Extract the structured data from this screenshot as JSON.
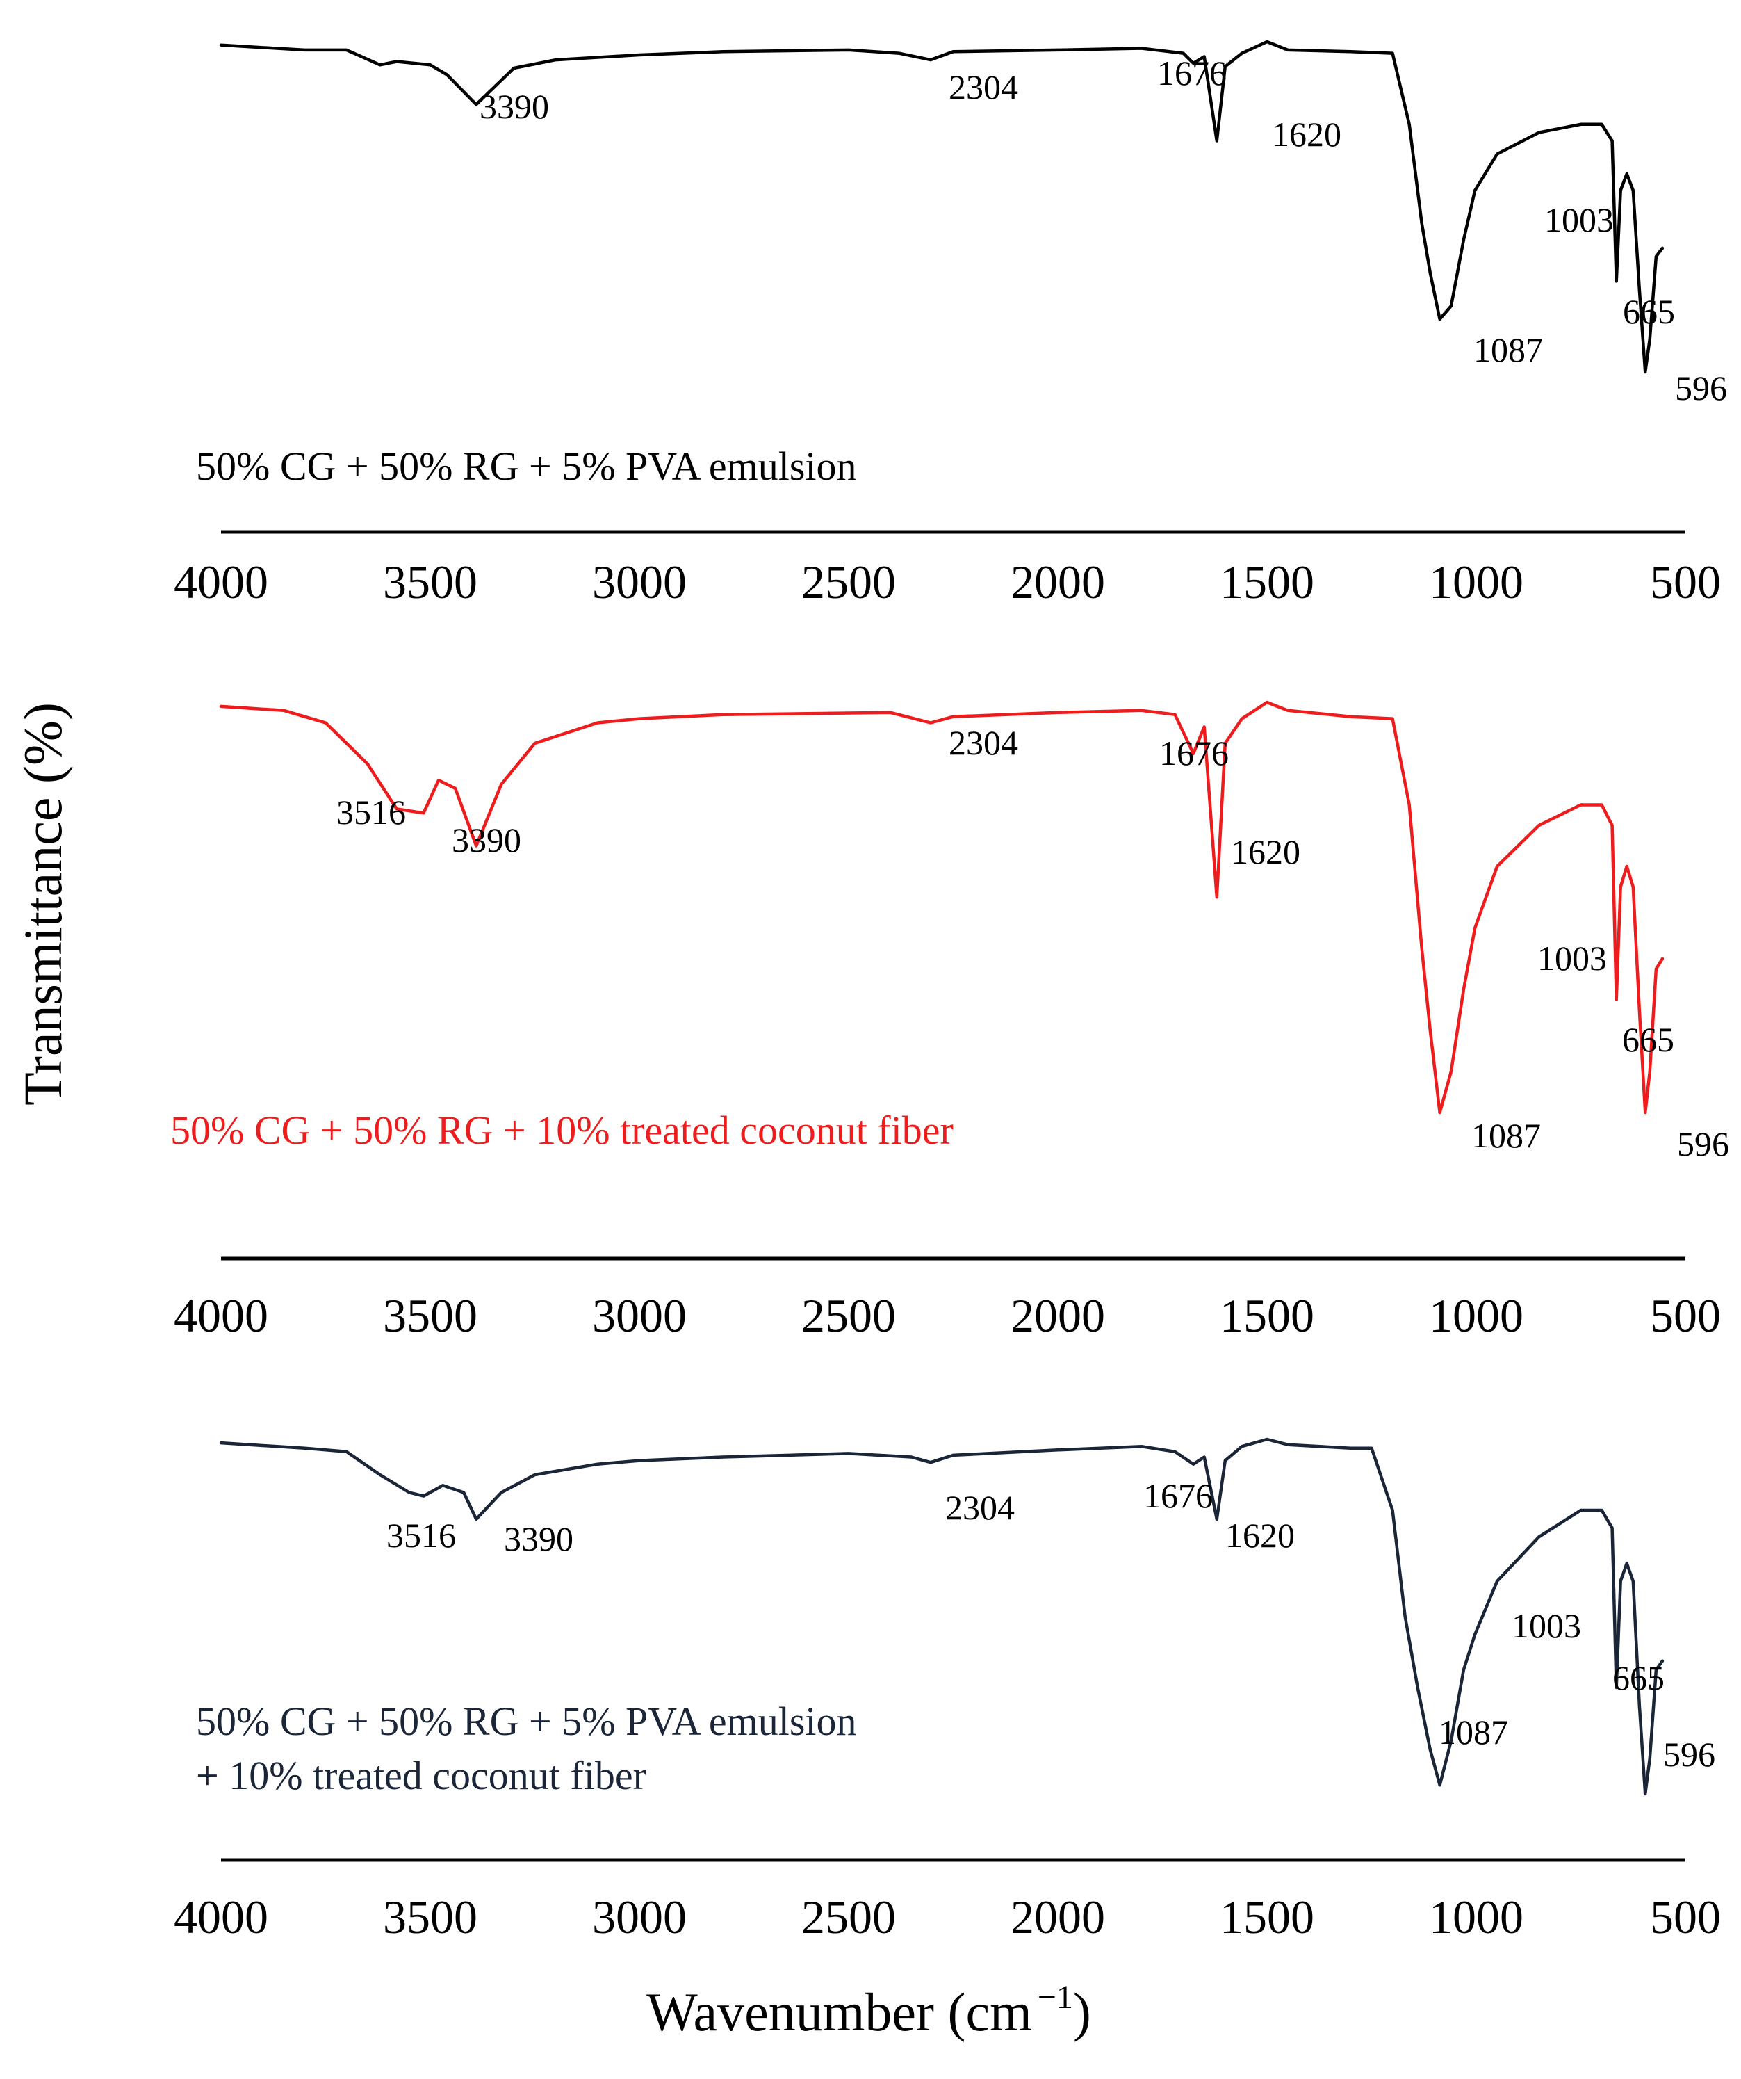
{
  "chart_data": {
    "type": "line",
    "ylabel": "Transmittance (%)",
    "xlabel": "Wavenumber (cm",
    "xlabel_exponent": "−1",
    "xlabel_close": ")",
    "xlim": [
      4000,
      500
    ],
    "x_ticks": [
      "4000",
      "3500",
      "3000",
      "2500",
      "2000",
      "1500",
      "1000",
      "500"
    ],
    "y_ticks_shown": false,
    "panels": [
      {
        "name": "panel-1",
        "color": "#000000",
        "sample_label": [
          "50% CG + 50% RG + 5% PVA emulsion"
        ],
        "spectrum": [
          [
            4000,
            0.98
          ],
          [
            3800,
            0.95
          ],
          [
            3700,
            0.95
          ],
          [
            3620,
            0.86
          ],
          [
            3580,
            0.88
          ],
          [
            3500,
            0.86
          ],
          [
            3460,
            0.8
          ],
          [
            3390,
            0.62
          ],
          [
            3300,
            0.84
          ],
          [
            3200,
            0.89
          ],
          [
            3000,
            0.92
          ],
          [
            2800,
            0.94
          ],
          [
            2500,
            0.95
          ],
          [
            2380,
            0.93
          ],
          [
            2304,
            0.89
          ],
          [
            2250,
            0.94
          ],
          [
            2000,
            0.95
          ],
          [
            1800,
            0.96
          ],
          [
            1700,
            0.93
          ],
          [
            1676,
            0.87
          ],
          [
            1650,
            0.91
          ],
          [
            1620,
            0.4
          ],
          [
            1600,
            0.85
          ],
          [
            1560,
            0.93
          ],
          [
            1500,
            1.0
          ],
          [
            1450,
            0.95
          ],
          [
            1300,
            0.94
          ],
          [
            1200,
            0.93
          ],
          [
            1160,
            0.5
          ],
          [
            1130,
            -0.1
          ],
          [
            1110,
            -0.4
          ],
          [
            1087,
            -0.68
          ],
          [
            1060,
            -0.6
          ],
          [
            1030,
            -0.2
          ],
          [
            1003,
            0.1
          ],
          [
            950,
            0.32
          ],
          [
            850,
            0.45
          ],
          [
            750,
            0.5
          ],
          [
            700,
            0.5
          ],
          [
            675,
            0.4
          ],
          [
            665,
            -0.45
          ],
          [
            655,
            0.1
          ],
          [
            640,
            0.2
          ],
          [
            625,
            0.1
          ],
          [
            610,
            -0.5
          ],
          [
            596,
            -1.0
          ],
          [
            585,
            -0.8
          ],
          [
            570,
            -0.3
          ],
          [
            555,
            -0.25
          ]
        ],
        "peak_labels": [
          {
            "x": 3390,
            "text": "3390"
          },
          {
            "x": 2304,
            "text": "2304"
          },
          {
            "x": 1676,
            "text": "1676"
          },
          {
            "x": 1620,
            "text": "1620"
          },
          {
            "x": 1003,
            "text": "1003"
          },
          {
            "x": 1087,
            "text": "1087"
          },
          {
            "x": 665,
            "text": "665"
          },
          {
            "x": 596,
            "text": "596"
          }
        ]
      },
      {
        "name": "panel-2",
        "color": "#ee1c1c",
        "sample_label": [
          "50% CG + 50% RG + 10% treated coconut fiber"
        ],
        "spectrum": [
          [
            4000,
            0.98
          ],
          [
            3850,
            0.96
          ],
          [
            3750,
            0.9
          ],
          [
            3650,
            0.7
          ],
          [
            3580,
            0.48
          ],
          [
            3516,
            0.46
          ],
          [
            3480,
            0.62
          ],
          [
            3440,
            0.58
          ],
          [
            3390,
            0.3
          ],
          [
            3330,
            0.6
          ],
          [
            3250,
            0.8
          ],
          [
            3100,
            0.9
          ],
          [
            3000,
            0.92
          ],
          [
            2800,
            0.94
          ],
          [
            2400,
            0.95
          ],
          [
            2304,
            0.9
          ],
          [
            2250,
            0.93
          ],
          [
            2000,
            0.95
          ],
          [
            1800,
            0.96
          ],
          [
            1720,
            0.94
          ],
          [
            1676,
            0.75
          ],
          [
            1650,
            0.88
          ],
          [
            1620,
            0.05
          ],
          [
            1600,
            0.8
          ],
          [
            1560,
            0.92
          ],
          [
            1500,
            1.0
          ],
          [
            1450,
            0.96
          ],
          [
            1300,
            0.93
          ],
          [
            1200,
            0.92
          ],
          [
            1160,
            0.5
          ],
          [
            1130,
            -0.2
          ],
          [
            1110,
            -0.6
          ],
          [
            1087,
            -1.0
          ],
          [
            1060,
            -0.8
          ],
          [
            1030,
            -0.4
          ],
          [
            1003,
            -0.1
          ],
          [
            950,
            0.2
          ],
          [
            850,
            0.4
          ],
          [
            750,
            0.5
          ],
          [
            700,
            0.5
          ],
          [
            675,
            0.4
          ],
          [
            665,
            -0.45
          ],
          [
            655,
            0.1
          ],
          [
            640,
            0.2
          ],
          [
            625,
            0.1
          ],
          [
            610,
            -0.5
          ],
          [
            596,
            -1.0
          ],
          [
            585,
            -0.8
          ],
          [
            570,
            -0.3
          ],
          [
            555,
            -0.25
          ]
        ],
        "peak_labels": [
          {
            "x": 3516,
            "text": "3516"
          },
          {
            "x": 3390,
            "text": "3390"
          },
          {
            "x": 2304,
            "text": "2304"
          },
          {
            "x": 1676,
            "text": "1676"
          },
          {
            "x": 1620,
            "text": "1620"
          },
          {
            "x": 1003,
            "text": "1003"
          },
          {
            "x": 1087,
            "text": "1087"
          },
          {
            "x": 665,
            "text": "665"
          },
          {
            "x": 596,
            "text": "596"
          }
        ]
      },
      {
        "name": "panel-3",
        "color": "#1a2638",
        "sample_label": [
          "50% CG + 50% RG + 5% PVA emulsion",
          "+ 10% treated coconut fiber"
        ],
        "spectrum": [
          [
            4000,
            0.98
          ],
          [
            3800,
            0.95
          ],
          [
            3700,
            0.93
          ],
          [
            3620,
            0.8
          ],
          [
            3550,
            0.7
          ],
          [
            3516,
            0.68
          ],
          [
            3470,
            0.74
          ],
          [
            3420,
            0.7
          ],
          [
            3390,
            0.55
          ],
          [
            3330,
            0.7
          ],
          [
            3250,
            0.8
          ],
          [
            3100,
            0.86
          ],
          [
            3000,
            0.88
          ],
          [
            2800,
            0.9
          ],
          [
            2500,
            0.92
          ],
          [
            2350,
            0.9
          ],
          [
            2304,
            0.87
          ],
          [
            2250,
            0.91
          ],
          [
            2000,
            0.94
          ],
          [
            1800,
            0.96
          ],
          [
            1720,
            0.93
          ],
          [
            1676,
            0.86
          ],
          [
            1650,
            0.9
          ],
          [
            1620,
            0.55
          ],
          [
            1600,
            0.88
          ],
          [
            1560,
            0.96
          ],
          [
            1500,
            1.0
          ],
          [
            1450,
            0.97
          ],
          [
            1300,
            0.95
          ],
          [
            1250,
            0.95
          ],
          [
            1200,
            0.6
          ],
          [
            1170,
            0.0
          ],
          [
            1140,
            -0.4
          ],
          [
            1110,
            -0.75
          ],
          [
            1087,
            -0.95
          ],
          [
            1060,
            -0.7
          ],
          [
            1030,
            -0.3
          ],
          [
            1003,
            -0.1
          ],
          [
            950,
            0.2
          ],
          [
            850,
            0.45
          ],
          [
            750,
            0.6
          ],
          [
            700,
            0.6
          ],
          [
            675,
            0.5
          ],
          [
            665,
            -0.4
          ],
          [
            655,
            0.2
          ],
          [
            640,
            0.3
          ],
          [
            625,
            0.2
          ],
          [
            610,
            -0.5
          ],
          [
            596,
            -1.0
          ],
          [
            585,
            -0.8
          ],
          [
            570,
            -0.3
          ],
          [
            555,
            -0.25
          ]
        ],
        "peak_labels": [
          {
            "x": 3516,
            "text": "3516"
          },
          {
            "x": 3390,
            "text": "3390"
          },
          {
            "x": 2304,
            "text": "2304"
          },
          {
            "x": 1676,
            "text": "1676"
          },
          {
            "x": 1620,
            "text": "1620"
          },
          {
            "x": 1003,
            "text": "1003"
          },
          {
            "x": 1087,
            "text": "1087"
          },
          {
            "x": 665,
            "text": "665"
          },
          {
            "x": 596,
            "text": "596"
          }
        ]
      }
    ]
  }
}
